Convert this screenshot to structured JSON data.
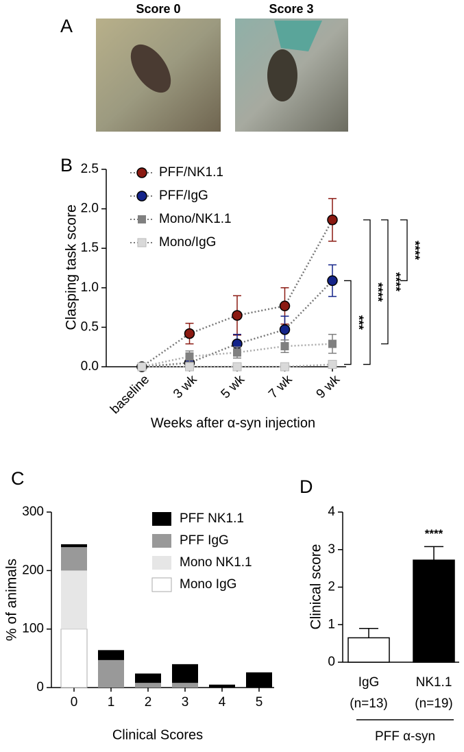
{
  "panel_a": {
    "label": "A",
    "images": [
      {
        "title": "Score 0"
      },
      {
        "title": "Score 3"
      }
    ]
  },
  "chart_data": [
    {
      "type": "line",
      "panel_label": "B",
      "y_label": "Clasping task score",
      "x_label": "Weeks after α-syn injection",
      "categories": [
        "baseline",
        "3 wk",
        "5 wk",
        "7 wk",
        "9 wk"
      ],
      "ylim": [
        0,
        2.5
      ],
      "yticks": [
        {
          "value": 0,
          "label": "0.0"
        },
        0.5,
        {
          "value": 1,
          "label": "1.0"
        },
        1.5,
        {
          "value": 2,
          "label": "2.0"
        },
        2.5
      ],
      "series": [
        {
          "name": "PFF/NK1.1",
          "color": "#8b1a12",
          "marker": "circle",
          "values": [
            0,
            0.42,
            0.65,
            0.77,
            1.86
          ],
          "errors": [
            0,
            0.13,
            0.25,
            0.23,
            0.27
          ]
        },
        {
          "name": "PFF/IgG",
          "color": "#14248a",
          "marker": "circle",
          "values": [
            0,
            0.05,
            0.29,
            0.47,
            1.09
          ],
          "errors": [
            0,
            0.05,
            0.12,
            0.17,
            0.2
          ]
        },
        {
          "name": "Mono/NK1.1",
          "color": "#808080",
          "marker": "square",
          "values": [
            0,
            0.13,
            0.18,
            0.26,
            0.29
          ],
          "errors": [
            0,
            0.07,
            0.07,
            0.08,
            0.12
          ]
        },
        {
          "name": "Mono/IgG",
          "color": "#d9d9d9",
          "marker": "square",
          "values": [
            0,
            0,
            0,
            0,
            0.03
          ],
          "errors": [
            0,
            0,
            0,
            0,
            0.02
          ]
        }
      ],
      "annotations": [
        "****",
        "****",
        "****",
        "***"
      ]
    },
    {
      "type": "stacked_bar",
      "panel_label": "C",
      "y_label": "% of animals",
      "x_label": "Clinical Scores",
      "categories": [
        "0",
        "1",
        "2",
        "3",
        "4",
        "5"
      ],
      "ylim": [
        0,
        300
      ],
      "yticks": [
        0,
        100,
        200,
        300
      ],
      "series": [
        {
          "name": "PFF NK1.1",
          "color": "#000000",
          "values": [
            5,
            17,
            16,
            32,
            5,
            26
          ]
        },
        {
          "name": "PFF IgG",
          "color": "#999999",
          "values": [
            40,
            47,
            8,
            8,
            0,
            0
          ]
        },
        {
          "name": "Mono NK1.1",
          "color": "#e6e6e6",
          "values": [
            100,
            0,
            0,
            0,
            0,
            0
          ]
        },
        {
          "name": "Mono IgG",
          "color": "#ffffff",
          "values": [
            100,
            0,
            0,
            0,
            0,
            0
          ]
        }
      ]
    },
    {
      "type": "bar",
      "panel_label": "D",
      "y_label": "Clinical score",
      "categories": [
        "IgG",
        "NK1.1"
      ],
      "category_notes": [
        "(n=13)",
        "(n=19)"
      ],
      "group_label": "PFF α-syn",
      "ylim": [
        0,
        4
      ],
      "yticks": [
        0,
        1,
        2,
        3,
        4
      ],
      "values": [
        0.65,
        2.72
      ],
      "errors": [
        0.25,
        0.36
      ],
      "colors": [
        "#ffffff",
        "#000000"
      ],
      "annotations": [
        "****"
      ]
    }
  ]
}
